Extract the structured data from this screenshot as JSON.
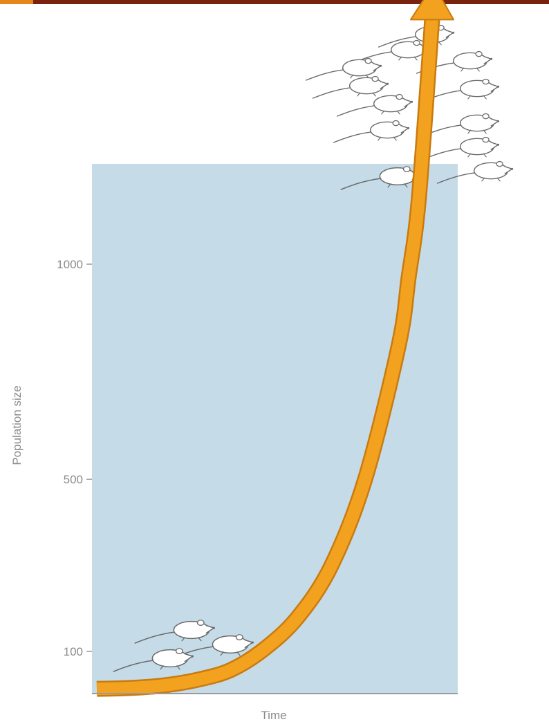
{
  "header": {
    "bar_color": "#7a2410",
    "accent_color": "#e7861b"
  },
  "chart_data": {
    "type": "line",
    "title": "",
    "xlabel": "Time",
    "ylabel": "Population size",
    "yticks": [
      100,
      500,
      1000
    ],
    "ylim": [
      -40,
      1400
    ],
    "grid": false,
    "plot_background": "#c5dbe8",
    "series": [
      {
        "style": "arrow",
        "color": "#f2a21e",
        "x": [
          0,
          10,
          20,
          30,
          40,
          50,
          60,
          70,
          80,
          90,
          93,
          96,
          100
        ],
        "y": [
          13,
          15,
          21,
          34,
          57,
          106,
          180,
          300,
          500,
          810,
          970,
          1150,
          1570
        ]
      }
    ],
    "annotations": [
      {
        "kind": "illustration",
        "icon": "mouse-icon",
        "count": 3,
        "position": "bottom-left"
      },
      {
        "kind": "illustration",
        "icon": "mouse-icon",
        "count": 12,
        "position": "top-right"
      }
    ]
  }
}
